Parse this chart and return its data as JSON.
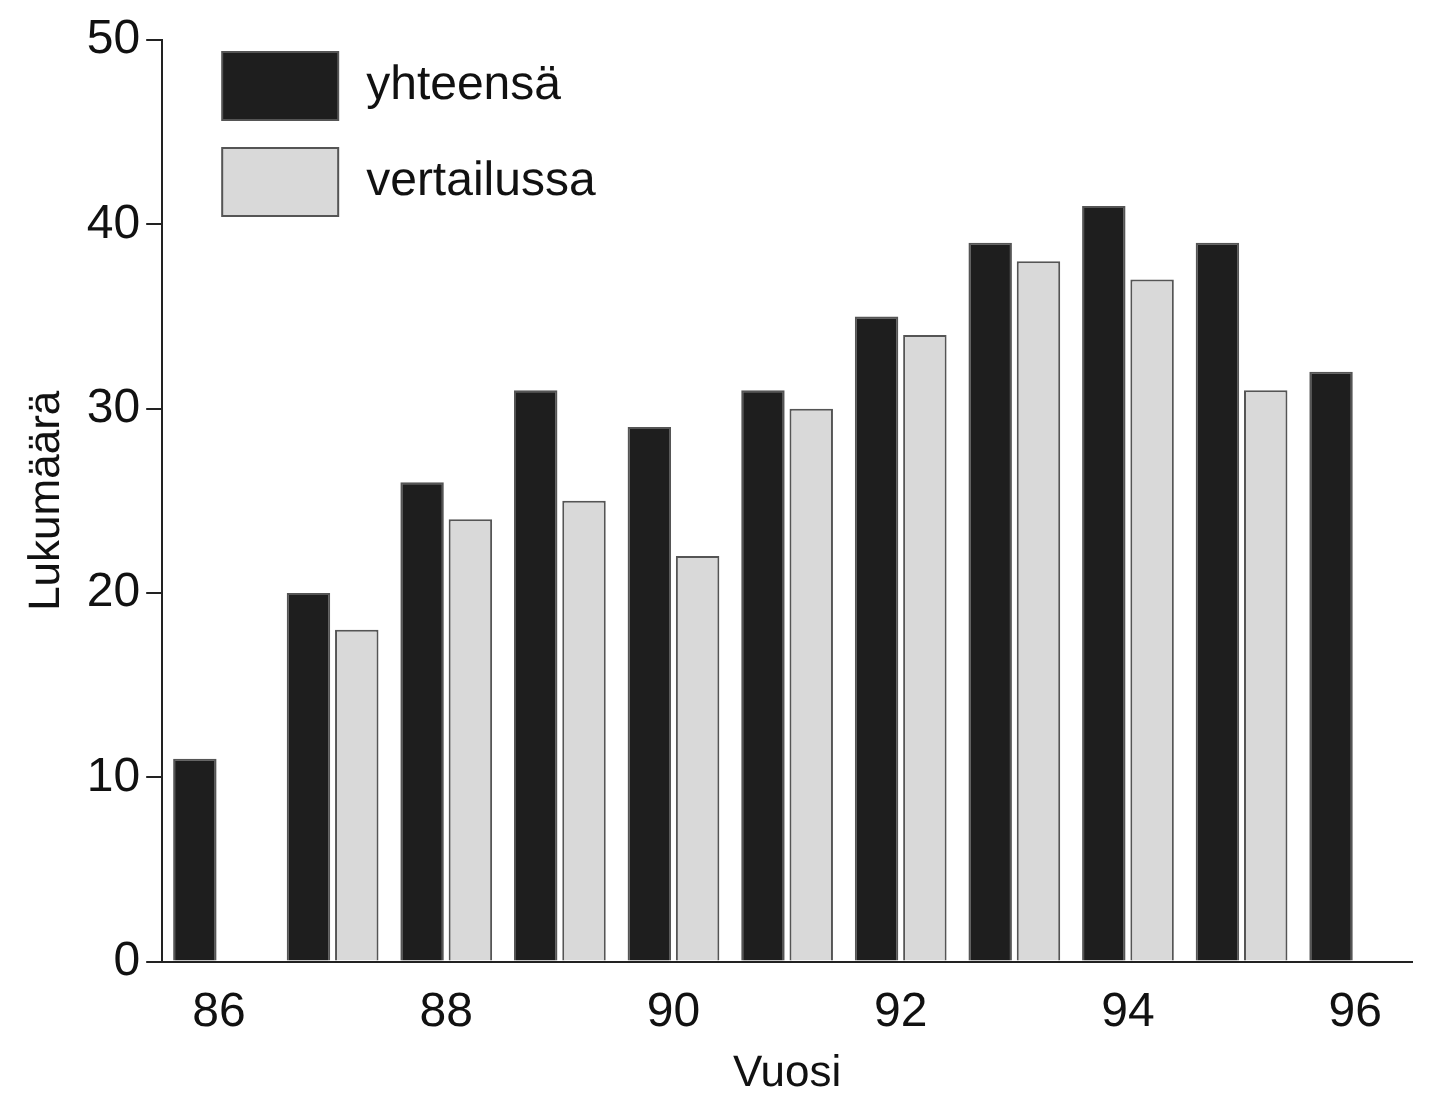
{
  "chart_data": {
    "type": "bar",
    "xlabel": "Vuosi",
    "ylabel": "Lukumäärä",
    "categories": [
      "86",
      null,
      "88",
      null,
      "90",
      null,
      "92",
      null,
      "94",
      null,
      "96"
    ],
    "series": [
      {
        "name": "yhteensä",
        "color": "#1e1e1e",
        "values": [
          11,
          20,
          26,
          31,
          29,
          31,
          35,
          39,
          41,
          39,
          32
        ]
      },
      {
        "name": "vertailussa",
        "color": "#d9d9d9",
        "values": [
          null,
          18,
          24,
          25,
          22,
          30,
          34,
          38,
          37,
          31,
          null
        ]
      }
    ],
    "ylim": [
      0,
      50
    ],
    "yticks": [
      0,
      10,
      20,
      30,
      40,
      50
    ],
    "grid": false,
    "legend": "top left"
  }
}
